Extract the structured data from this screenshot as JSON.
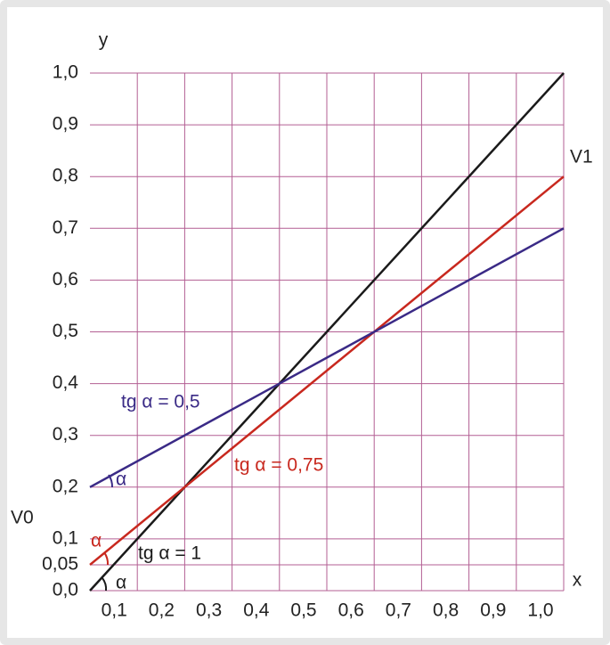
{
  "chart_data": {
    "type": "line",
    "xlabel": "x",
    "ylabel": "y",
    "x": [
      0,
      1
    ],
    "series": [
      {
        "name": "tg α = 1",
        "color": "#1a1a1a",
        "values": [
          0,
          1
        ]
      },
      {
        "name": "tg α = 0,75",
        "color": "#c8281e",
        "values": [
          0.05,
          0.8
        ]
      },
      {
        "name": "tg α = 0,5",
        "color": "#3a2a86",
        "values": [
          0.2,
          0.7
        ]
      }
    ],
    "xlim": [
      0,
      1
    ],
    "ylim": [
      0,
      1
    ],
    "xticks": [
      {
        "value": 0.1,
        "label": "0,1"
      },
      {
        "value": 0.2,
        "label": "0,2"
      },
      {
        "value": 0.3,
        "label": "0,3"
      },
      {
        "value": 0.4,
        "label": "0,4"
      },
      {
        "value": 0.5,
        "label": "0,5"
      },
      {
        "value": 0.6,
        "label": "0,6"
      },
      {
        "value": 0.7,
        "label": "0,7"
      },
      {
        "value": 0.8,
        "label": "0,8"
      },
      {
        "value": 0.9,
        "label": "0,9"
      },
      {
        "value": 1,
        "label": "1,0"
      }
    ],
    "yticks": [
      {
        "value": 0,
        "label": "0,0"
      },
      {
        "value": 0.05,
        "label": "0,05"
      },
      {
        "value": 0.1,
        "label": "0,1"
      },
      {
        "value": 0.2,
        "label": "0,2"
      },
      {
        "value": 0.3,
        "label": "0,3"
      },
      {
        "value": 0.4,
        "label": "0,4"
      },
      {
        "value": 0.5,
        "label": "0,5"
      },
      {
        "value": 0.6,
        "label": "0,6"
      },
      {
        "value": 0.7,
        "label": "0,7"
      },
      {
        "value": 0.8,
        "label": "0,8"
      },
      {
        "value": 0.9,
        "label": "0,9"
      },
      {
        "value": 1,
        "label": "1,0"
      }
    ],
    "grid": true,
    "grid_color": "#b35f93",
    "annotations": [
      "V0",
      "V1",
      "α",
      "α",
      "α"
    ]
  }
}
